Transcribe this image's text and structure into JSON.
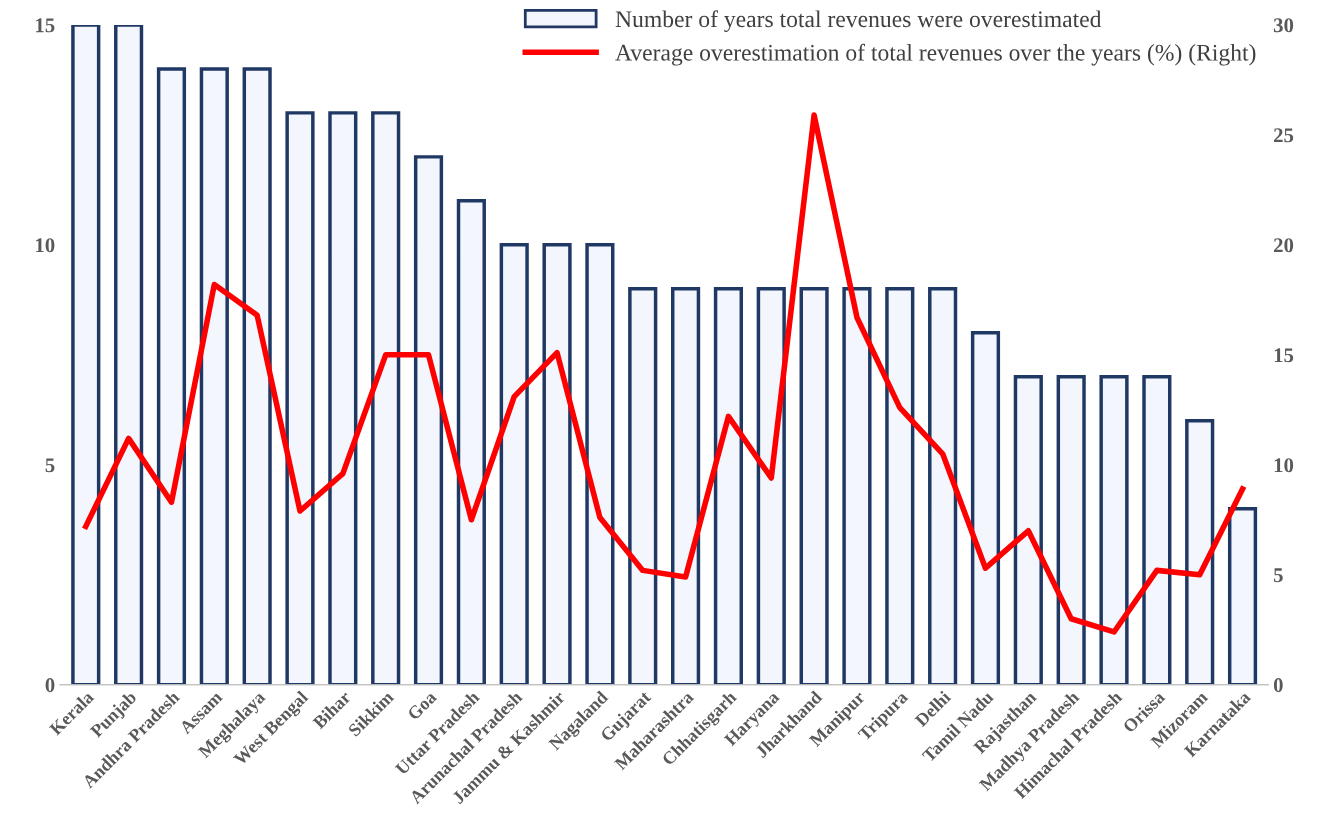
{
  "chart_data": {
    "type": "bar",
    "categories": [
      "Kerala",
      "Punjab",
      "Andhra Pradesh",
      "Assam",
      "Meghalaya",
      "West Bengal",
      "Bihar",
      "Sikkim",
      "Goa",
      "Uttar Pradesh",
      "Arunachal Pradesh",
      "Jammu & Kashmir",
      "Nagaland",
      "Gujarat",
      "Maharashtra",
      "Chhatisgarh",
      "Haryana",
      "Jharkhand",
      "Manipur",
      "Tripura",
      "Delhi",
      "Tamil Nadu",
      "Rajasthan",
      "Madhya Pradesh",
      "Himachal Pradesh",
      "Orissa",
      "Mizoram",
      "Karnataka"
    ],
    "series": [
      {
        "name": "Number of years total revenues were overestimated",
        "color": "#203864",
        "values": [
          15,
          15,
          14,
          14,
          14,
          13,
          13,
          13,
          12,
          11,
          10,
          10,
          10,
          9,
          9,
          9,
          9,
          9,
          9,
          9,
          9,
          8,
          7,
          7,
          7,
          7,
          6,
          4
        ]
      },
      {
        "name": "Average overestimation of total revenues over the years (%) (Right)",
        "type": "line",
        "axis": "y2",
        "color": "#ff0000",
        "values": [
          7.2,
          11.2,
          8.3,
          18.2,
          16.8,
          7.9,
          9.6,
          15.0,
          15.0,
          7.5,
          13.1,
          15.1,
          7.6,
          5.2,
          4.9,
          12.2,
          9.4,
          25.9,
          16.7,
          12.6,
          10.5,
          5.3,
          7.0,
          3.0,
          2.4,
          5.2,
          5.0,
          8.9
        ]
      }
    ],
    "ylim": [
      0,
      15
    ],
    "yticks": [
      0,
      5,
      10,
      15
    ],
    "y2lim": [
      0,
      30
    ],
    "y2ticks": [
      0,
      5,
      10,
      15,
      20,
      25,
      30
    ],
    "grid": false,
    "legend": "top right",
    "marker": "none",
    "line_style": "solid"
  }
}
